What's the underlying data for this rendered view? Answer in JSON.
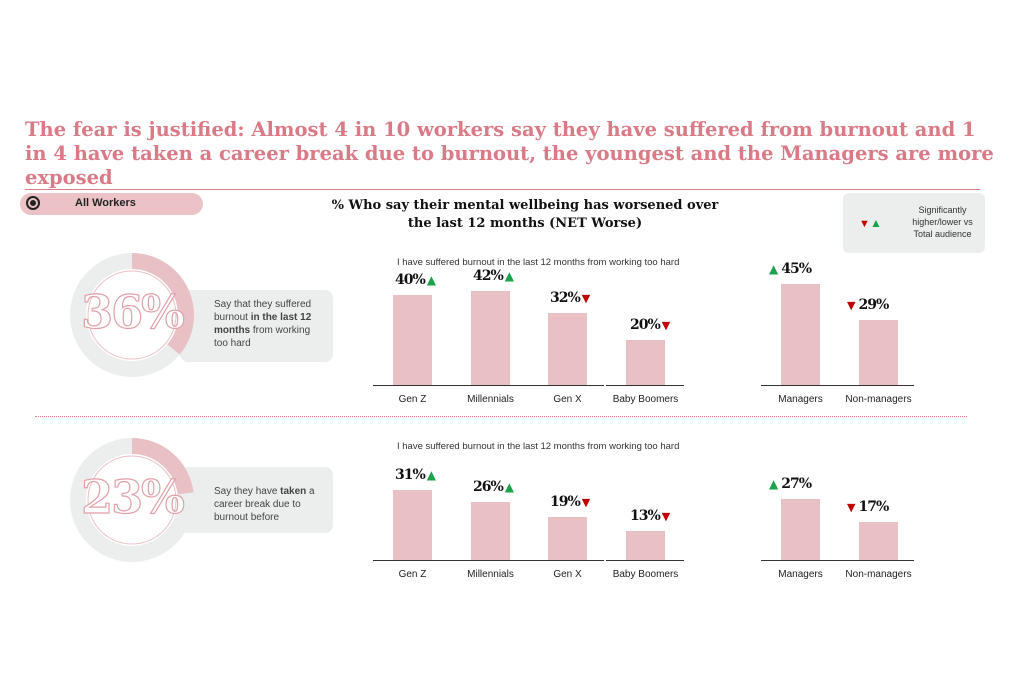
{
  "title": "The fear is justified: Almost 4 in 10 workers say they have suffered from burnout and 1 in 4 have taken a career break due to burnout, the youngest and the Managers are more exposed",
  "filter_pill": "All Workers",
  "subtitle": "% Who say their mental wellbeing has worsened over the last 12 months (NET Worse)",
  "legend": {
    "text": "Significantly higher/lower vs Total audience",
    "down_icon": "▼",
    "up_icon": "▲"
  },
  "colors": {
    "accent": "#d97a86",
    "bar": "#e9c1c4",
    "up": "#1aa34a",
    "down": "#c00000"
  },
  "kpis": [
    {
      "value": "36%",
      "fraction": 0.36,
      "text_before": "Say that they suffered burnout ",
      "text_bold": "in the last 12 months",
      "text_after": "  from working too hard"
    },
    {
      "value": "23%",
      "fraction": 0.23,
      "text_before": "Say they have ",
      "text_bold": "taken",
      "text_after": " a career break due to burnout before"
    }
  ],
  "chart_data": [
    {
      "type": "bar",
      "title": "I have suffered burnout in the last 12 months from working too hard",
      "categories": [
        "Gen Z",
        "Millennials",
        "Gen X",
        "Baby Boomers",
        "Managers",
        "Non-managers"
      ],
      "values": [
        40,
        42,
        32,
        20,
        45,
        29
      ],
      "labels": [
        "40%",
        "42%",
        "32%",
        "20%",
        "45%",
        "29%"
      ],
      "significance": [
        "up",
        "up",
        "down",
        "down",
        "up",
        "down"
      ],
      "ylim": [
        0,
        50
      ]
    },
    {
      "type": "bar",
      "title": "I have suffered burnout in the last 12 months from working too hard",
      "categories": [
        "Gen Z",
        "Millennials",
        "Gen X",
        "Baby Boomers",
        "Managers",
        "Non-managers"
      ],
      "values": [
        31,
        26,
        19,
        13,
        27,
        17
      ],
      "labels": [
        "31%",
        "26%",
        "19%",
        "13%",
        "27%",
        "17%"
      ],
      "significance": [
        "up",
        "up",
        "down",
        "down",
        "up",
        "down"
      ],
      "ylim": [
        0,
        50
      ]
    }
  ]
}
